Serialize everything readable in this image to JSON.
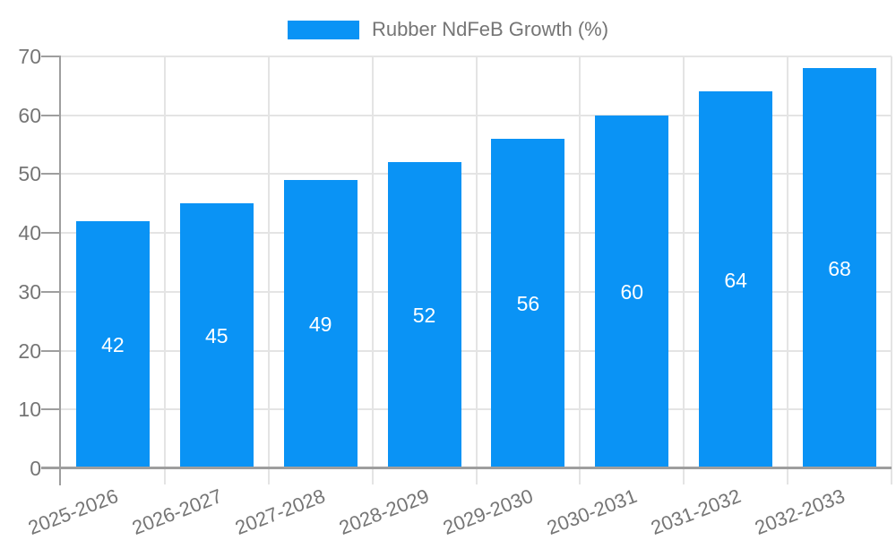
{
  "chart_data": {
    "type": "bar",
    "title": "",
    "series_name": "Rubber NdFeB Growth (%)",
    "categories": [
      "2025-2026",
      "2026-2027",
      "2027-2028",
      "2028-2029",
      "2029-2030",
      "2030-2031",
      "2031-2032",
      "2032-2033"
    ],
    "values": [
      42,
      45,
      49,
      52,
      56,
      60,
      64,
      68
    ],
    "xlabel": "",
    "ylabel": "",
    "ylim": [
      0,
      70
    ],
    "ytick_step": 10,
    "ytick_labels": [
      "0",
      "10",
      "20",
      "30",
      "40",
      "50",
      "60",
      "70"
    ],
    "grid": true,
    "legend_position": "top-center",
    "value_labels": "inside-center",
    "x_label_rotation_deg": -21,
    "colors": {
      "bar": "#0a93f5",
      "value_text": "#ffffff",
      "axis_text": "#757575",
      "gridline": "#e4e4e4",
      "axis_line": "#9e9e9e",
      "background": "#ffffff"
    }
  }
}
